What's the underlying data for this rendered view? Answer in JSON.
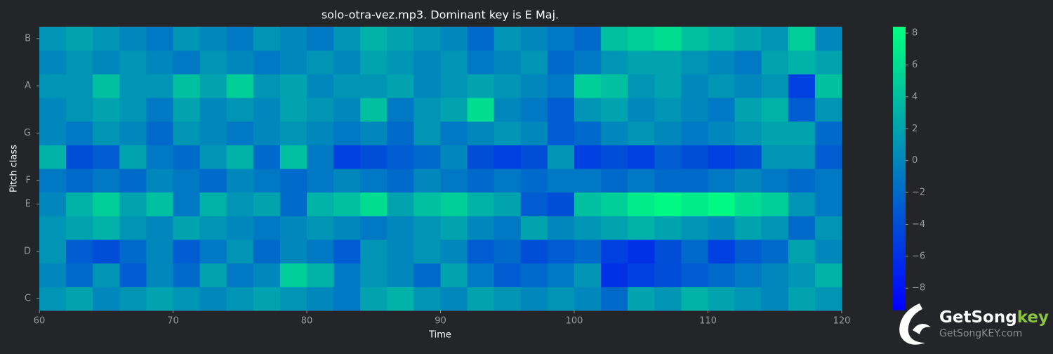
{
  "chart_data": {
    "type": "heatmap",
    "title": "solo-otra-vez.mp3. Dominant key is E Maj.",
    "xlabel": "Time",
    "ylabel": "Pitch class",
    "x": [
      61,
      63,
      65,
      67,
      69,
      71,
      73,
      75,
      77,
      79,
      81,
      83,
      85,
      87,
      89,
      91,
      93,
      95,
      97,
      99,
      101,
      103,
      105,
      107,
      109,
      111,
      113,
      115,
      117,
      119
    ],
    "categories": [
      "C",
      null,
      "D",
      null,
      "E",
      "F",
      null,
      "G",
      null,
      "A",
      null,
      "B"
    ],
    "z": [
      [
        1,
        2,
        0,
        1,
        2,
        1,
        0,
        1,
        2,
        1,
        0,
        -1,
        2,
        3,
        1,
        0,
        2,
        1,
        0,
        1,
        0,
        -2,
        2,
        1,
        3,
        2,
        1,
        0,
        2,
        1
      ],
      [
        0,
        -2,
        1,
        -3,
        0,
        -2,
        2,
        -1,
        0,
        5,
        3,
        -1,
        1,
        0,
        -2,
        2,
        -1,
        -3,
        -2,
        -1,
        1,
        -6,
        -5,
        -4,
        -3,
        -2,
        -1,
        0,
        1,
        3
      ],
      [
        1,
        -3,
        -4,
        -2,
        0,
        -3,
        -1,
        1,
        -2,
        0,
        -1,
        -3,
        1,
        0,
        1,
        0,
        -3,
        -2,
        -4,
        -3,
        -2,
        -5,
        -6,
        -4,
        -2,
        -5,
        -3,
        -2,
        2,
        0
      ],
      [
        1,
        2,
        3,
        1,
        0,
        2,
        1,
        0,
        -1,
        0,
        1,
        0,
        -1,
        0,
        1,
        2,
        0,
        -1,
        2,
        0,
        1,
        2,
        3,
        2,
        1,
        0,
        2,
        1,
        -2,
        1
      ],
      [
        0,
        3,
        5,
        2,
        4,
        -1,
        3,
        1,
        2,
        -2,
        3,
        4,
        6,
        2,
        4,
        5,
        3,
        2,
        -3,
        -4,
        4,
        5,
        7,
        8,
        7,
        8,
        6,
        5,
        1,
        -1
      ],
      [
        -1,
        -2,
        -1,
        -2,
        0,
        -1,
        -2,
        0,
        -1,
        -2,
        -1,
        0,
        -1,
        -2,
        0,
        -1,
        -2,
        -1,
        -2,
        -1,
        -1,
        -2,
        -1,
        -2,
        -2,
        -1,
        0,
        -1,
        -2,
        -1
      ],
      [
        3,
        -4,
        -3,
        2,
        -1,
        -2,
        1,
        3,
        -2,
        4,
        -1,
        -5,
        -4,
        -3,
        -2,
        0,
        -4,
        -5,
        -4,
        1,
        -5,
        -4,
        -5,
        -3,
        -4,
        -5,
        -4,
        1,
        1,
        -3
      ],
      [
        0,
        -1,
        1,
        0,
        -2,
        1,
        0,
        -1,
        0,
        1,
        0,
        -1,
        0,
        -2,
        1,
        -1,
        0,
        1,
        0,
        -3,
        -2,
        0,
        1,
        0,
        -1,
        0,
        1,
        2,
        2,
        -2
      ],
      [
        0,
        1,
        2,
        1,
        -1,
        2,
        0,
        1,
        0,
        2,
        1,
        0,
        4,
        -1,
        1,
        2,
        6,
        0,
        -1,
        -3,
        1,
        2,
        0,
        1,
        0,
        -1,
        2,
        3,
        -3,
        1
      ],
      [
        1,
        1,
        4,
        1,
        1,
        4,
        2,
        5,
        1,
        2,
        0,
        1,
        1,
        2,
        0,
        1,
        2,
        1,
        0,
        -1,
        5,
        4,
        1,
        2,
        0,
        1,
        0,
        1,
        -5,
        4
      ],
      [
        0,
        1,
        0,
        1,
        0,
        -1,
        1,
        0,
        -1,
        0,
        1,
        0,
        2,
        1,
        0,
        1,
        -1,
        0,
        1,
        -2,
        -1,
        1,
        2,
        2,
        1,
        0,
        -1,
        2,
        3,
        2
      ],
      [
        1,
        2,
        1,
        0,
        -1,
        1,
        0,
        -1,
        1,
        0,
        -1,
        1,
        3,
        2,
        1,
        0,
        -2,
        1,
        0,
        -1,
        -2,
        4,
        5,
        6,
        4,
        3,
        2,
        1,
        5,
        0
      ]
    ],
    "xlim": [
      60,
      120
    ],
    "xticks": [
      60,
      70,
      80,
      90,
      100,
      110,
      120
    ],
    "clim": [
      -9.4,
      8.4
    ],
    "cticks": [
      {
        "value": -8,
        "label": "−8"
      },
      {
        "value": -6,
        "label": "−6"
      },
      {
        "value": -4,
        "label": "−4"
      },
      {
        "value": -2,
        "label": "−2"
      },
      0,
      2,
      4,
      6,
      8
    ],
    "colormap": [
      "#0000ff",
      "#00ff80"
    ]
  },
  "logo": {
    "name_main": "GetSong",
    "name_accent": "key",
    "url": "GetSongKEY.com"
  }
}
